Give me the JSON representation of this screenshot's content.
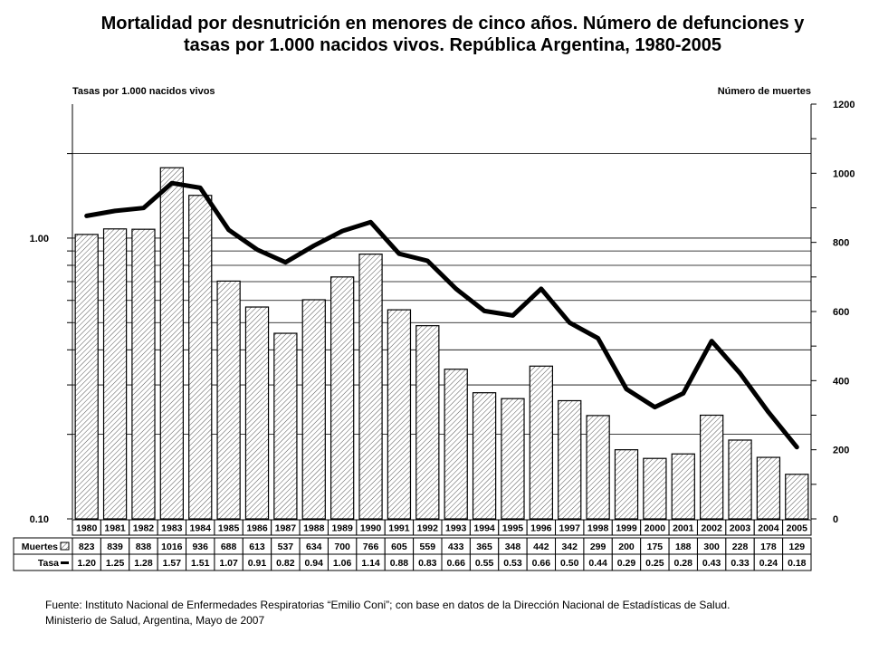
{
  "title_line1": "Mortalidad por desnutrición en menores de cinco años. Número de defunciones y",
  "title_line2": "tasas por 1.000 nacidos vivos. República Argentina, 1980-2005",
  "footer_line1": "Fuente: Instituto Nacional de Enfermedades Respiratorias “Emilio Coni”; con base en datos de la Dirección Nacional de Estadísticas de Salud.",
  "footer_line2": "Ministerio de Salud, Argentina, Mayo de 2007",
  "colors": {
    "line": "#000000",
    "bar_fill": "#ffffff",
    "bar_stroke": "#000000",
    "grid": "#000000"
  },
  "chart_data": {
    "type": "bar+line",
    "left_axis_label": "Tasas por 1.000 nacidos vivos",
    "right_axis_label": "Número de muertes",
    "left_scale": "log",
    "left_ticks": [
      "1.00",
      "0.10"
    ],
    "left_ylim": [
      0.1,
      3.0
    ],
    "right_ticks": [
      "0",
      "200",
      "400",
      "600",
      "800",
      "1000",
      "1200"
    ],
    "right_ylim": [
      0,
      1200
    ],
    "years": [
      "1980",
      "1981",
      "1982",
      "1983",
      "1984",
      "1985",
      "1986",
      "1987",
      "1988",
      "1989",
      "1990",
      "1991",
      "1992",
      "1993",
      "1994",
      "1995",
      "1996",
      "1997",
      "1998",
      "1999",
      "2000",
      "2001",
      "2002",
      "2003",
      "2004",
      "2005"
    ],
    "muertes_label": "Muertes",
    "tasa_label": "Tasa",
    "muertes": [
      823,
      839,
      838,
      1016,
      936,
      688,
      613,
      537,
      634,
      700,
      766,
      605,
      559,
      433,
      365,
      348,
      442,
      342,
      299,
      200,
      175,
      188,
      300,
      228,
      178,
      129
    ],
    "tasa": [
      1.2,
      1.25,
      1.28,
      1.57,
      1.51,
      1.07,
      0.91,
      0.82,
      0.94,
      1.06,
      1.14,
      0.88,
      0.83,
      0.66,
      0.55,
      0.53,
      0.66,
      0.5,
      0.44,
      0.29,
      0.25,
      0.28,
      0.43,
      0.33,
      0.24,
      0.18
    ],
    "tasa_display": [
      "1.20",
      "1.25",
      "1.28",
      "1.57",
      "1.51",
      "1.07",
      "0.91",
      "0.82",
      "0.94",
      "1.06",
      "1.14",
      "0.88",
      "0.83",
      "0.66",
      "0.55",
      "0.53",
      "0.66",
      "0.50",
      "0.44",
      "0.29",
      "0.25",
      "0.28",
      "0.43",
      "0.33",
      "0.24",
      "0.18"
    ]
  }
}
